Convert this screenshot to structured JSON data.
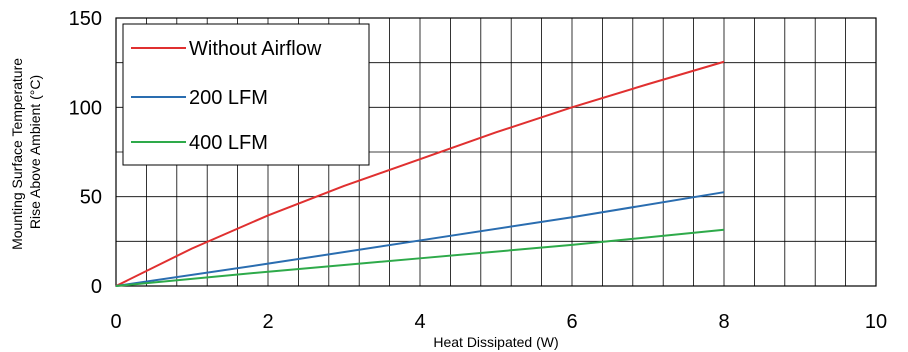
{
  "chart_data": {
    "type": "line",
    "title": "",
    "xlabel": "Heat Dissipated (W)",
    "ylabel_lines": [
      "Mounting Surface Temperature",
      "Rise Above  Ambient (°C)"
    ],
    "xlim": [
      0,
      10
    ],
    "ylim": [
      0,
      150
    ],
    "x_ticks": [
      0,
      2,
      4,
      6,
      8,
      10
    ],
    "y_ticks": [
      0,
      50,
      100,
      150
    ],
    "grid": true,
    "x_minor_step": 0.4,
    "y_minor_step": 25,
    "legend_position": "top-left",
    "series": [
      {
        "name": "Without Airflow",
        "color": "#e03030",
        "x": [
          0,
          1,
          2,
          3,
          4,
          5,
          6,
          7,
          8
        ],
        "y": [
          0,
          21,
          39.5,
          56,
          71,
          86,
          100,
          113,
          125.5
        ]
      },
      {
        "name": "200 LFM",
        "color": "#2a6db0",
        "x": [
          0,
          2,
          4,
          6,
          8
        ],
        "y": [
          0,
          12.5,
          25.5,
          38.5,
          52.5
        ]
      },
      {
        "name": "400 LFM",
        "color": "#2eaa4a",
        "x": [
          0,
          2,
          4,
          6,
          8
        ],
        "y": [
          0,
          8,
          15.5,
          23,
          31.5
        ]
      }
    ]
  }
}
